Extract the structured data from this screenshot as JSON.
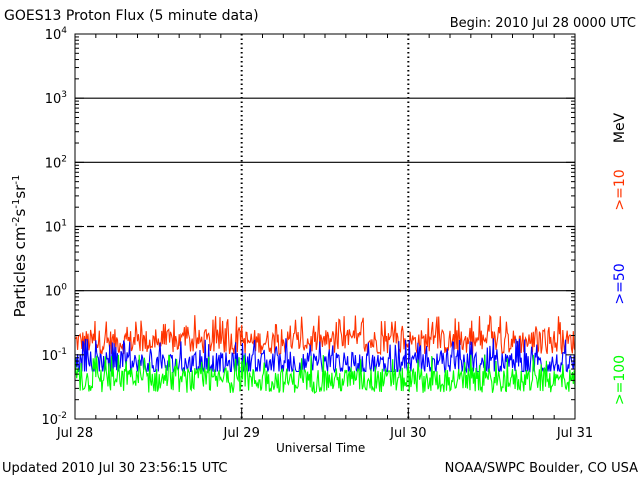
{
  "header": {
    "title": "GOES13 Proton Flux (5 minute data)",
    "begin": "Begin: 2010 Jul 28 0000 UTC"
  },
  "footer": {
    "updated": "Updated 2010 Jul 30 23:56:15 UTC",
    "credit": "NOAA/SWPC Boulder, CO USA"
  },
  "colors": {
    "series_10": "#ff3300",
    "series_50": "#0000ff",
    "series_100": "#00ff00"
  },
  "chart_data": {
    "type": "line",
    "title": "GOES13 Proton Flux (5 minute data)",
    "xlabel": "Universal Time",
    "ylabel": "Particles cm^-2 s^-1 sr^-1",
    "y_scale": "log",
    "ylim": [
      0.01,
      10000
    ],
    "x_ticks": [
      "Jul 28",
      "Jul 29",
      "Jul 30",
      "Jul 31"
    ],
    "y_ticks": [
      {
        "base": "10",
        "exp": "-2",
        "value": 0.01
      },
      {
        "base": "10",
        "exp": "-1",
        "value": 0.1
      },
      {
        "base": "10",
        "exp": "0",
        "value": 1
      },
      {
        "base": "10",
        "exp": "1",
        "value": 10
      },
      {
        "base": "10",
        "exp": "2",
        "value": 100
      },
      {
        "base": "10",
        "exp": "3",
        "value": 1000
      },
      {
        "base": "10",
        "exp": "4",
        "value": 10000
      }
    ],
    "threshold_lines": [
      {
        "value": 1,
        "style": "solid"
      },
      {
        "value": 10,
        "style": "dashed"
      },
      {
        "value": 100,
        "style": "solid"
      },
      {
        "value": 1000,
        "style": "solid"
      }
    ],
    "series_unit": "MeV",
    "series": [
      {
        "name": ">=10",
        "color": "#ff3300",
        "base_level": 0.16,
        "min": 0.1,
        "max": 0.5
      },
      {
        "name": ">=50",
        "color": "#0000ff",
        "base_level": 0.07,
        "min": 0.055,
        "max": 0.2
      },
      {
        "name": ">=100",
        "color": "#00ff00",
        "base_level": 0.04,
        "min": 0.025,
        "max": 0.1
      }
    ]
  }
}
